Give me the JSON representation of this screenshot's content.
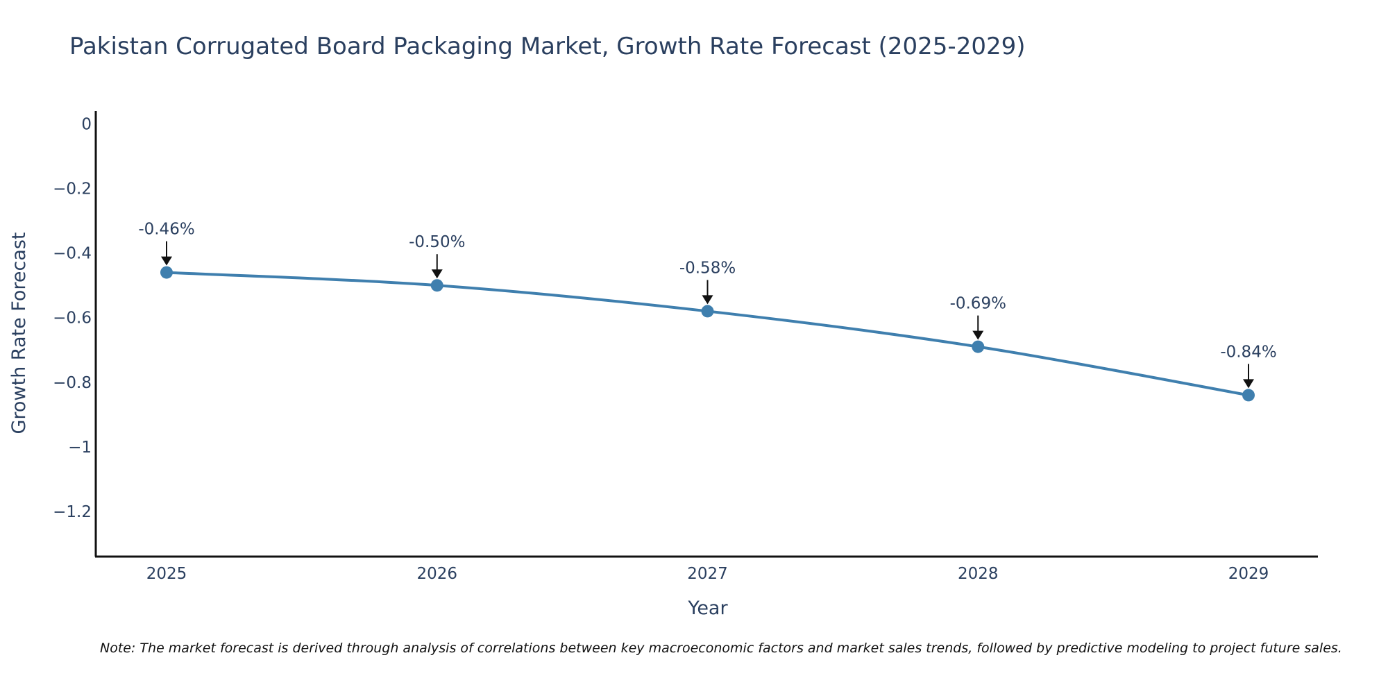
{
  "chart_data": {
    "type": "line",
    "title": "Pakistan Corrugated Board Packaging Market, Growth Rate Forecast (2025-2029)",
    "xlabel": "Year",
    "ylabel": "Growth Rate Forecast",
    "categories": [
      "2025",
      "2026",
      "2027",
      "2028",
      "2029"
    ],
    "series": [
      {
        "name": "Growth Rate Forecast",
        "values": [
          -0.46,
          -0.5,
          -0.58,
          -0.69,
          -0.84
        ],
        "labels": [
          "-0.46%",
          "-0.50%",
          "-0.58%",
          "-0.69%",
          "-0.84%"
        ]
      }
    ],
    "ylim": [
      -1.34,
      0.04
    ],
    "yticks": [
      0,
      -0.2,
      -0.4,
      -0.6,
      -0.8,
      -1,
      -1.2
    ],
    "ytick_labels": [
      "0",
      "−0.2",
      "−0.4",
      "−0.6",
      "−0.8",
      "−1",
      "−1.2"
    ],
    "grid": false,
    "line_color": "#3f7fae",
    "note": "Note: The market forecast is derived through analysis of correlations between key macroeconomic factors and market sales trends, followed by predictive modeling to project future sales."
  }
}
